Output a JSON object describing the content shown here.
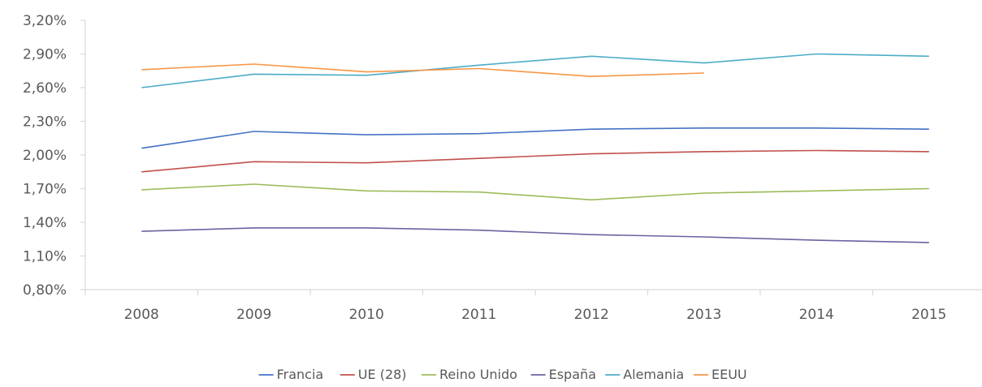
{
  "chart_data": {
    "type": "line",
    "title": "",
    "xlabel": "",
    "ylabel": "",
    "categories": [
      "2008",
      "2009",
      "2010",
      "2011",
      "2012",
      "2013",
      "2014",
      "2015"
    ],
    "y_ticks": [
      "3,20%",
      "2,90%",
      "2,60%",
      "2,30%",
      "2,00%",
      "1,70%",
      "1,40%",
      "1,10%",
      "0,80%"
    ],
    "ylim": [
      0.8,
      3.2
    ],
    "y_unit": "%",
    "grid": false,
    "legend_position": "bottom",
    "series": [
      {
        "name": "Francia",
        "color": "#4472c4",
        "values": [
          2.06,
          2.21,
          2.18,
          2.19,
          2.23,
          2.24,
          2.24,
          2.23
        ]
      },
      {
        "name": "UE (28)",
        "color": "#c0504d",
        "values": [
          1.85,
          1.94,
          1.93,
          1.97,
          2.01,
          2.03,
          2.04,
          2.03
        ]
      },
      {
        "name": "Reino Unido",
        "color": "#9bbb59",
        "values": [
          1.69,
          1.74,
          1.68,
          1.67,
          1.6,
          1.66,
          1.68,
          1.7
        ]
      },
      {
        "name": "España",
        "color": "#7060a0",
        "values": [
          1.32,
          1.35,
          1.35,
          1.33,
          1.29,
          1.27,
          1.24,
          1.22
        ]
      },
      {
        "name": "Alemania",
        "color": "#4bacc6",
        "values": [
          2.6,
          2.72,
          2.71,
          2.8,
          2.88,
          2.82,
          2.9,
          2.88
        ]
      },
      {
        "name": "EEUU",
        "color": "#f79646",
        "values": [
          2.76,
          2.81,
          2.74,
          2.77,
          2.7,
          2.73,
          null,
          null
        ]
      }
    ]
  }
}
